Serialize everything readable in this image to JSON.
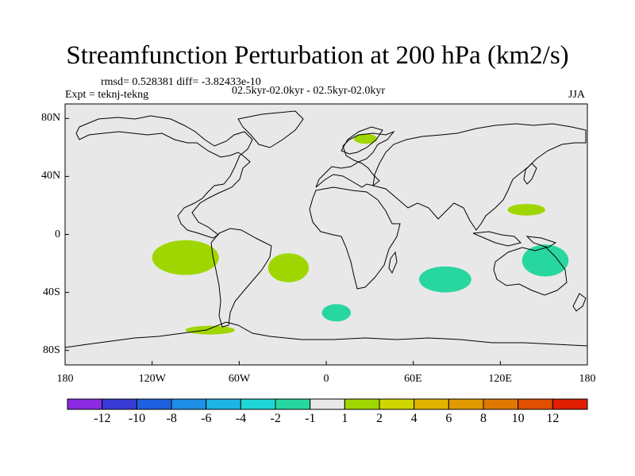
{
  "title": "Streamfunction Perturbation at 200 hPa (km2/s)",
  "stats": "rmsd= 0.528381 diff= -3.82433e-10",
  "experiment": "Expt = teknj-tekng",
  "period": "02.5kyr-02.0kyr - 02.5kyr-02.0kyr",
  "season": "JJA",
  "map": {
    "projection": "cylindrical-equidistant",
    "lon_range": [
      -180,
      180
    ],
    "lat_range": [
      -90,
      90
    ],
    "background_color": "#e8e8e8",
    "coastline_color": "#000000",
    "lon_ticks": [
      {
        "value": -180,
        "label": "180"
      },
      {
        "value": -120,
        "label": "120W"
      },
      {
        "value": -60,
        "label": "60W"
      },
      {
        "value": 0,
        "label": "0"
      },
      {
        "value": 60,
        "label": "60E"
      },
      {
        "value": 120,
        "label": "120E"
      },
      {
        "value": 180,
        "label": "180"
      }
    ],
    "lat_ticks": [
      {
        "value": 80,
        "label": "80N"
      },
      {
        "value": 40,
        "label": "40N"
      },
      {
        "value": 0,
        "label": "0"
      },
      {
        "value": -40,
        "label": "40S"
      },
      {
        "value": -80,
        "label": "80S"
      }
    ]
  },
  "chart_data": {
    "type": "filled-contour-map",
    "variable": "streamfunction perturbation",
    "level": "200 hPa",
    "units": "km2/s",
    "features": [
      {
        "name": "scandinavia-positive",
        "lon": 27,
        "lat": 66,
        "rx": 8,
        "ry": 3.5,
        "color": "#a0d600",
        "level": "1 to 2"
      },
      {
        "name": "east-asia-positive",
        "lon": 138,
        "lat": 17,
        "rx": 13,
        "ry": 4,
        "color": "#a0d600",
        "level": "1 to 2"
      },
      {
        "name": "southeast-pacific-positive",
        "lon": -97,
        "lat": -16,
        "rx": 23,
        "ry": 12,
        "color": "#a0d600",
        "level": "1 to 2"
      },
      {
        "name": "south-atlantic-positive",
        "lon": -26,
        "lat": -23,
        "rx": 14,
        "ry": 10,
        "color": "#a0d600",
        "level": "1 to 2"
      },
      {
        "name": "southern-ocean-positive",
        "lon": -80,
        "lat": -66,
        "rx": 17,
        "ry": 3,
        "color": "#a0d600",
        "level": "1 to 2"
      },
      {
        "name": "indian-ocean-negative",
        "lon": 82,
        "lat": -31,
        "rx": 18,
        "ry": 9,
        "color": "#28d6a0",
        "level": "-2 to -1"
      },
      {
        "name": "south-atlantic-negative",
        "lon": 7,
        "lat": -54,
        "rx": 10,
        "ry": 6,
        "color": "#28d6a0",
        "level": "-2 to -1"
      },
      {
        "name": "australia-negative",
        "lon": 151,
        "lat": -18,
        "rx": 16,
        "ry": 11,
        "color": "#28d6a0",
        "level": "-2 to -1"
      }
    ]
  },
  "colorbar": {
    "colors": [
      "#8a2be2",
      "#3a3ad6",
      "#1e5fe0",
      "#1e8ee6",
      "#1eb4e6",
      "#1ed6d6",
      "#28d6a0",
      "#e8e8e8",
      "#a0d600",
      "#cfd600",
      "#e0b400",
      "#e09a00",
      "#e07800",
      "#e05000",
      "#e01e00"
    ],
    "labels": [
      "-12",
      "-10",
      "-8",
      "-6",
      "-4",
      "-2",
      "-1",
      "1",
      "2",
      "4",
      "6",
      "8",
      "10",
      "12"
    ]
  }
}
